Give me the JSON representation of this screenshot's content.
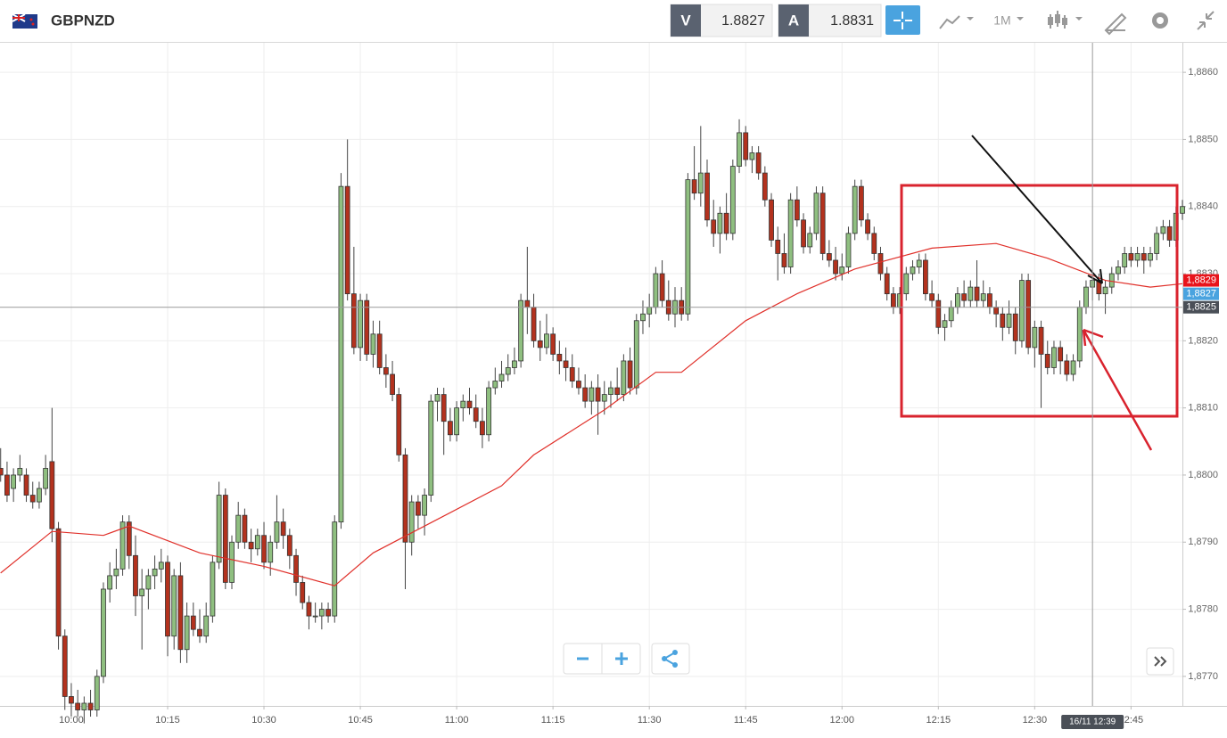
{
  "header": {
    "symbol": "GBPNZD",
    "bid_label": "V",
    "bid": 1.8827,
    "ask_label": "A",
    "ask": 1.8831,
    "timeframe": "1M"
  },
  "chart_data": {
    "type": "candlestick",
    "grid": true,
    "up_color": "#8fbf80",
    "down_color": "#b3321e",
    "xlim": [
      -0.1,
      184
    ],
    "ylim": [
      1.87656,
      1.88644
    ],
    "xticks": [
      {
        "value": 11,
        "label": "10:00"
      },
      {
        "value": 26,
        "label": "10:15"
      },
      {
        "value": 41,
        "label": "10:30"
      },
      {
        "value": 56,
        "label": "10:45"
      },
      {
        "value": 71,
        "label": "11:00"
      },
      {
        "value": 86,
        "label": "11:15"
      },
      {
        "value": 101,
        "label": "11:30"
      },
      {
        "value": 116,
        "label": "11:45"
      },
      {
        "value": 131,
        "label": "12:00"
      },
      {
        "value": 146,
        "label": "12:15"
      },
      {
        "value": 161,
        "label": "12:30"
      },
      {
        "value": 176,
        "label": "12:45"
      }
    ],
    "yticks": [
      {
        "value": 1.877,
        "label": "1,8770"
      },
      {
        "value": 1.878,
        "label": "1,8780"
      },
      {
        "value": 1.879,
        "label": "1,8790"
      },
      {
        "value": 1.88,
        "label": "1,8800"
      },
      {
        "value": 1.881,
        "label": "1,8810"
      },
      {
        "value": 1.882,
        "label": "1,8820"
      },
      {
        "value": 1.883,
        "label": "1,8830"
      },
      {
        "value": 1.884,
        "label": "1,8840"
      },
      {
        "value": 1.885,
        "label": "1,8850"
      },
      {
        "value": 1.886,
        "label": "1,8860"
      }
    ],
    "candles": [
      [
        1.8801,
        1.8804,
        1.8799,
        1.88
      ],
      [
        1.88,
        1.8802,
        1.8796,
        1.8797
      ],
      [
        1.8798,
        1.8801,
        1.8796,
        1.88
      ],
      [
        1.88,
        1.8803,
        1.8799,
        1.8801
      ],
      [
        1.88,
        1.8801,
        1.8796,
        1.8797
      ],
      [
        1.8797,
        1.8799,
        1.8795,
        1.8796
      ],
      [
        1.8796,
        1.8799,
        1.8795,
        1.8798
      ],
      [
        1.8798,
        1.8803,
        1.8797,
        1.8801
      ],
      [
        1.8802,
        1.881,
        1.879,
        1.8792
      ],
      [
        1.8792,
        1.8793,
        1.8774,
        1.8776
      ],
      [
        1.8776,
        1.8777,
        1.8765,
        1.8767
      ],
      [
        1.8767,
        1.8769,
        1.8764,
        1.8766
      ],
      [
        1.8766,
        1.8768,
        1.8764,
        1.8765
      ],
      [
        1.8765,
        1.8767,
        1.8763,
        1.8766
      ],
      [
        1.8766,
        1.8768,
        1.8764,
        1.8765
      ],
      [
        1.8765,
        1.8771,
        1.8764,
        1.877
      ],
      [
        1.877,
        1.8784,
        1.8769,
        1.8783
      ],
      [
        1.8783,
        1.8787,
        1.8781,
        1.8785
      ],
      [
        1.8785,
        1.8789,
        1.8783,
        1.8786
      ],
      [
        1.8786,
        1.8794,
        1.8785,
        1.8793
      ],
      [
        1.8793,
        1.8794,
        1.8786,
        1.8788
      ],
      [
        1.8788,
        1.8791,
        1.8779,
        1.8782
      ],
      [
        1.8782,
        1.8786,
        1.8774,
        1.8783
      ],
      [
        1.8783,
        1.8786,
        1.878,
        1.8785
      ],
      [
        1.8785,
        1.8788,
        1.8783,
        1.8786
      ],
      [
        1.8786,
        1.8789,
        1.8784,
        1.8787
      ],
      [
        1.8787,
        1.8788,
        1.8773,
        1.8776
      ],
      [
        1.8776,
        1.8786,
        1.8774,
        1.8785
      ],
      [
        1.8785,
        1.8787,
        1.8772,
        1.8774
      ],
      [
        1.8774,
        1.8781,
        1.8772,
        1.8779
      ],
      [
        1.8779,
        1.8781,
        1.8776,
        1.8777
      ],
      [
        1.8777,
        1.878,
        1.8775,
        1.8776
      ],
      [
        1.8776,
        1.8781,
        1.8775,
        1.8779
      ],
      [
        1.8779,
        1.8788,
        1.8778,
        1.8787
      ],
      [
        1.8787,
        1.8799,
        1.8786,
        1.8797
      ],
      [
        1.8797,
        1.8798,
        1.8783,
        1.8784
      ],
      [
        1.8784,
        1.8791,
        1.8783,
        1.879
      ],
      [
        1.879,
        1.8796,
        1.8789,
        1.8794
      ],
      [
        1.8794,
        1.8795,
        1.8789,
        1.879
      ],
      [
        1.879,
        1.8792,
        1.8787,
        1.8789
      ],
      [
        1.8789,
        1.8792,
        1.8788,
        1.8791
      ],
      [
        1.8791,
        1.8793,
        1.8786,
        1.8787
      ],
      [
        1.8787,
        1.8791,
        1.8785,
        1.879
      ],
      [
        1.879,
        1.8797,
        1.8789,
        1.8793
      ],
      [
        1.8793,
        1.8795,
        1.8789,
        1.8791
      ],
      [
        1.8791,
        1.8792,
        1.8786,
        1.8788
      ],
      [
        1.8788,
        1.8789,
        1.8782,
        1.8784
      ],
      [
        1.8784,
        1.8785,
        1.878,
        1.8781
      ],
      [
        1.8781,
        1.8782,
        1.8777,
        1.8779
      ],
      [
        1.8779,
        1.8781,
        1.8778,
        1.8779
      ],
      [
        1.8779,
        1.8781,
        1.8777,
        1.878
      ],
      [
        1.878,
        1.8781,
        1.8778,
        1.8779
      ],
      [
        1.8779,
        1.8794,
        1.8778,
        1.8793
      ],
      [
        1.8793,
        1.8845,
        1.8792,
        1.8843
      ],
      [
        1.8843,
        1.885,
        1.8826,
        1.8827
      ],
      [
        1.8827,
        1.8834,
        1.8818,
        1.8819
      ],
      [
        1.8819,
        1.8827,
        1.8817,
        1.8826
      ],
      [
        1.8826,
        1.8827,
        1.8817,
        1.8818
      ],
      [
        1.8818,
        1.8823,
        1.8816,
        1.8821
      ],
      [
        1.8821,
        1.8823,
        1.8815,
        1.8816
      ],
      [
        1.8816,
        1.8818,
        1.8813,
        1.8815
      ],
      [
        1.8815,
        1.8817,
        1.8811,
        1.8812
      ],
      [
        1.8812,
        1.8813,
        1.8802,
        1.8803
      ],
      [
        1.8803,
        1.8804,
        1.8783,
        1.879
      ],
      [
        1.879,
        1.8797,
        1.8788,
        1.8796
      ],
      [
        1.8796,
        1.8797,
        1.8792,
        1.8794
      ],
      [
        1.8794,
        1.8798,
        1.8791,
        1.8797
      ],
      [
        1.8797,
        1.8812,
        1.8796,
        1.8811
      ],
      [
        1.8811,
        1.8813,
        1.8808,
        1.8812
      ],
      [
        1.8812,
        1.8813,
        1.8803,
        1.8808
      ],
      [
        1.8808,
        1.881,
        1.8805,
        1.8806
      ],
      [
        1.8806,
        1.8811,
        1.8805,
        1.881
      ],
      [
        1.881,
        1.8812,
        1.8808,
        1.8811
      ],
      [
        1.8811,
        1.8813,
        1.8809,
        1.881
      ],
      [
        1.881,
        1.8812,
        1.8807,
        1.8808
      ],
      [
        1.8808,
        1.881,
        1.8804,
        1.8806
      ],
      [
        1.8806,
        1.8814,
        1.8805,
        1.8813
      ],
      [
        1.8813,
        1.8816,
        1.8812,
        1.8814
      ],
      [
        1.8814,
        1.8817,
        1.8813,
        1.8815
      ],
      [
        1.8815,
        1.8818,
        1.8814,
        1.8816
      ],
      [
        1.8816,
        1.8819,
        1.8815,
        1.8817
      ],
      [
        1.8817,
        1.8827,
        1.8816,
        1.8826
      ],
      [
        1.8826,
        1.8834,
        1.8821,
        1.8825
      ],
      [
        1.8825,
        1.8827,
        1.8819,
        1.882
      ],
      [
        1.882,
        1.8823,
        1.8817,
        1.8819
      ],
      [
        1.8819,
        1.8824,
        1.8818,
        1.8821
      ],
      [
        1.8821,
        1.8822,
        1.8817,
        1.8818
      ],
      [
        1.8818,
        1.882,
        1.8815,
        1.8817
      ],
      [
        1.8817,
        1.8819,
        1.8814,
        1.8816
      ],
      [
        1.8816,
        1.8818,
        1.8813,
        1.8814
      ],
      [
        1.8814,
        1.8816,
        1.8812,
        1.8813
      ],
      [
        1.8813,
        1.8815,
        1.881,
        1.8811
      ],
      [
        1.8811,
        1.8814,
        1.8809,
        1.8813
      ],
      [
        1.8813,
        1.8815,
        1.8806,
        1.8811
      ],
      [
        1.8811,
        1.8814,
        1.8809,
        1.8812
      ],
      [
        1.8812,
        1.8814,
        1.881,
        1.8813
      ],
      [
        1.8813,
        1.8816,
        1.8811,
        1.8812
      ],
      [
        1.8812,
        1.8818,
        1.8811,
        1.8817
      ],
      [
        1.8817,
        1.8819,
        1.8812,
        1.8813
      ],
      [
        1.8813,
        1.8824,
        1.8812,
        1.8823
      ],
      [
        1.8823,
        1.8826,
        1.8821,
        1.8824
      ],
      [
        1.8824,
        1.8827,
        1.8822,
        1.8825
      ],
      [
        1.8825,
        1.8831,
        1.8824,
        1.883
      ],
      [
        1.883,
        1.8832,
        1.8825,
        1.8826
      ],
      [
        1.8826,
        1.8829,
        1.8823,
        1.8824
      ],
      [
        1.8824,
        1.8828,
        1.8822,
        1.8826
      ],
      [
        1.8826,
        1.8828,
        1.8823,
        1.8824
      ],
      [
        1.8824,
        1.8845,
        1.8823,
        1.8844
      ],
      [
        1.8844,
        1.8849,
        1.8841,
        1.8842
      ],
      [
        1.8842,
        1.8852,
        1.884,
        1.8845
      ],
      [
        1.8845,
        1.8847,
        1.8837,
        1.8838
      ],
      [
        1.8838,
        1.8841,
        1.8834,
        1.8836
      ],
      [
        1.8836,
        1.884,
        1.8833,
        1.8839
      ],
      [
        1.8839,
        1.8842,
        1.8835,
        1.8836
      ],
      [
        1.8836,
        1.8847,
        1.8835,
        1.8846
      ],
      [
        1.8846,
        1.8853,
        1.8845,
        1.8851
      ],
      [
        1.8851,
        1.8852,
        1.8846,
        1.8847
      ],
      [
        1.8847,
        1.8849,
        1.8845,
        1.8848
      ],
      [
        1.8848,
        1.8849,
        1.8844,
        1.8845
      ],
      [
        1.8845,
        1.8846,
        1.884,
        1.8841
      ],
      [
        1.8841,
        1.8842,
        1.8834,
        1.8835
      ],
      [
        1.8835,
        1.8837,
        1.8829,
        1.8833
      ],
      [
        1.8833,
        1.8836,
        1.883,
        1.8831
      ],
      [
        1.8831,
        1.8842,
        1.883,
        1.8841
      ],
      [
        1.8841,
        1.8843,
        1.8837,
        1.8838
      ],
      [
        1.8838,
        1.8839,
        1.8833,
        1.8834
      ],
      [
        1.8834,
        1.8837,
        1.8833,
        1.8836
      ],
      [
        1.8836,
        1.8843,
        1.8835,
        1.8842
      ],
      [
        1.8842,
        1.8843,
        1.8832,
        1.8833
      ],
      [
        1.8833,
        1.8835,
        1.8831,
        1.8832
      ],
      [
        1.8832,
        1.8834,
        1.8829,
        1.883
      ],
      [
        1.883,
        1.8833,
        1.8829,
        1.8831
      ],
      [
        1.8831,
        1.8837,
        1.883,
        1.8836
      ],
      [
        1.8836,
        1.8844,
        1.8835,
        1.8843
      ],
      [
        1.8843,
        1.8844,
        1.8837,
        1.8838
      ],
      [
        1.8838,
        1.8839,
        1.8835,
        1.8836
      ],
      [
        1.8836,
        1.8837,
        1.8832,
        1.8833
      ],
      [
        1.8833,
        1.8834,
        1.8829,
        1.883
      ],
      [
        1.883,
        1.8831,
        1.8826,
        1.8827
      ],
      [
        1.8827,
        1.8828,
        1.8824,
        1.8825
      ],
      [
        1.8825,
        1.8828,
        1.8824,
        1.8827
      ],
      [
        1.8827,
        1.8831,
        1.8826,
        1.883
      ],
      [
        1.883,
        1.8832,
        1.8829,
        1.8831
      ],
      [
        1.8831,
        1.8833,
        1.883,
        1.8832
      ],
      [
        1.8832,
        1.8833,
        1.8826,
        1.8827
      ],
      [
        1.8827,
        1.8829,
        1.8825,
        1.8826
      ],
      [
        1.8826,
        1.8827,
        1.8821,
        1.8822
      ],
      [
        1.8822,
        1.8824,
        1.882,
        1.8823
      ],
      [
        1.8823,
        1.8826,
        1.8822,
        1.8825
      ],
      [
        1.8825,
        1.8828,
        1.8824,
        1.8827
      ],
      [
        1.8827,
        1.8829,
        1.8825,
        1.8826
      ],
      [
        1.8826,
        1.8829,
        1.8825,
        1.8828
      ],
      [
        1.8828,
        1.8832,
        1.8825,
        1.8826
      ],
      [
        1.8826,
        1.8829,
        1.8825,
        1.8827
      ],
      [
        1.8827,
        1.8828,
        1.8824,
        1.8825
      ],
      [
        1.8825,
        1.8826,
        1.8822,
        1.8824
      ],
      [
        1.8824,
        1.8825,
        1.882,
        1.8822
      ],
      [
        1.8822,
        1.8826,
        1.8821,
        1.8824
      ],
      [
        1.8824,
        1.8825,
        1.8818,
        1.882
      ],
      [
        1.882,
        1.883,
        1.8819,
        1.8829
      ],
      [
        1.8829,
        1.883,
        1.8818,
        1.8819
      ],
      [
        1.8819,
        1.8823,
        1.8816,
        1.8822
      ],
      [
        1.8822,
        1.8823,
        1.881,
        1.8818
      ],
      [
        1.8818,
        1.882,
        1.8815,
        1.8816
      ],
      [
        1.8816,
        1.882,
        1.8815,
        1.8819
      ],
      [
        1.8819,
        1.882,
        1.8815,
        1.8817
      ],
      [
        1.8817,
        1.8818,
        1.8814,
        1.8815
      ],
      [
        1.8815,
        1.8818,
        1.8814,
        1.8817
      ],
      [
        1.8817,
        1.8826,
        1.8816,
        1.8825
      ],
      [
        1.8825,
        1.8829,
        1.8824,
        1.8828
      ],
      [
        1.8828,
        1.883,
        1.8826,
        1.8829
      ],
      [
        1.8829,
        1.883,
        1.8826,
        1.8827
      ],
      [
        1.8827,
        1.8829,
        1.8824,
        1.8828
      ],
      [
        1.8828,
        1.8831,
        1.8827,
        1.883
      ],
      [
        1.883,
        1.8832,
        1.8829,
        1.8831
      ],
      [
        1.8831,
        1.8834,
        1.883,
        1.8833
      ],
      [
        1.8833,
        1.8834,
        1.8831,
        1.8832
      ],
      [
        1.8832,
        1.8834,
        1.8831,
        1.8833
      ],
      [
        1.8833,
        1.8834,
        1.883,
        1.8832
      ],
      [
        1.8832,
        1.8834,
        1.8831,
        1.8833
      ],
      [
        1.8833,
        1.8837,
        1.8832,
        1.8836
      ],
      [
        1.8836,
        1.8838,
        1.8835,
        1.8837
      ],
      [
        1.8837,
        1.8838,
        1.8834,
        1.8835
      ],
      [
        1.8835,
        1.884,
        1.8834,
        1.8839
      ],
      [
        1.8839,
        1.8841,
        1.8838,
        1.884
      ]
    ],
    "moving_average": {
      "color": "#e0302a",
      "x": [
        0,
        8,
        16,
        20,
        31,
        41,
        52,
        58,
        68,
        78,
        83,
        94,
        102,
        106,
        116,
        124,
        133,
        145,
        155,
        163,
        172,
        179,
        184
      ],
      "values": [
        1.87854,
        1.87916,
        1.8791,
        1.87924,
        1.87884,
        1.87864,
        1.87835,
        1.87884,
        1.87934,
        1.87984,
        1.8803,
        1.88097,
        1.88153,
        1.88153,
        1.8823,
        1.8827,
        1.88307,
        1.88338,
        1.88345,
        1.88323,
        1.8829,
        1.8828,
        1.88285
      ]
    },
    "price_tags": [
      {
        "value": 1.8829,
        "label": "1,8829",
        "color": "#e8141b"
      },
      {
        "value": 1.8827,
        "label": "1,8827",
        "color": "#4aa3df"
      }
    ],
    "crosshair": {
      "x": 170,
      "price": 1.8825,
      "price_label": "1,8825",
      "time_label": "16/11 12:39"
    }
  }
}
